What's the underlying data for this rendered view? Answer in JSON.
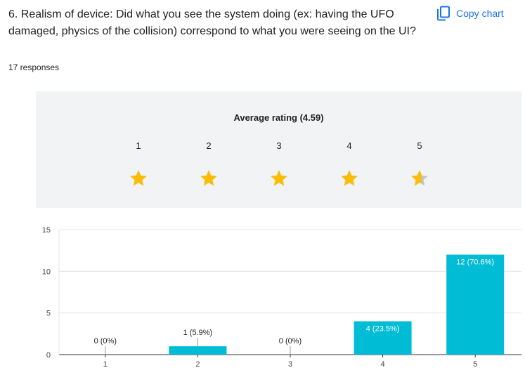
{
  "question": {
    "title": "6. Realism of device: Did what you see the system doing (ex: having the UFO damaged, physics of the collision) correspond to what you were seeing on the UI?",
    "responses": "17 responses",
    "copy_label": "Copy chart"
  },
  "rating": {
    "title": "Average rating (4.59)",
    "value": 4.59,
    "scale": [
      "1",
      "2",
      "3",
      "4",
      "5"
    ]
  },
  "colors": {
    "bar": "#00bcd4",
    "star": "#fbbc04",
    "star_empty": "#c4c4c4",
    "accent": "#1a73e8"
  },
  "chart_data": {
    "type": "bar",
    "categories": [
      "1",
      "2",
      "3",
      "4",
      "5"
    ],
    "values": [
      0,
      1,
      0,
      4,
      12
    ],
    "labels": [
      "0 (0%)",
      "1 (5.9%)",
      "0 (0%)",
      "4 (23.5%)",
      "12 (70.6%)"
    ],
    "yticks": [
      0,
      5,
      10,
      15
    ],
    "ylim": [
      0,
      15
    ],
    "grid": true
  }
}
